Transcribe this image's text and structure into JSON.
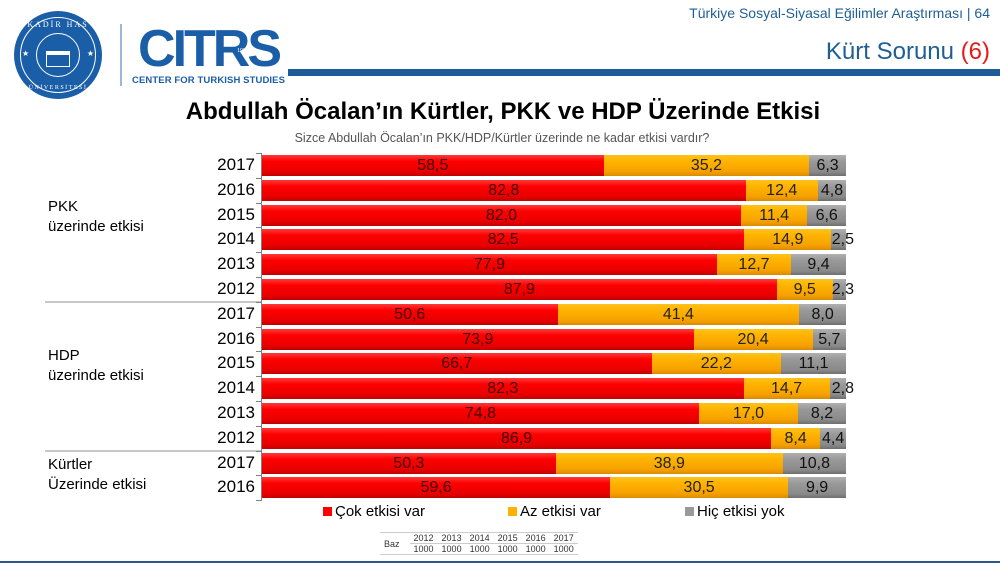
{
  "header": {
    "report_title": "Türkiye Sosyal-Siyasal Eğilimler Araştırması | 64",
    "section_title": "Kürt Sorunu",
    "section_number": "(6)"
  },
  "logos": {
    "university": {
      "top_text": "KADİR HAS",
      "year": "1997",
      "bottom_text": "ÜNİVERSİTESİ"
    },
    "center": {
      "word": "CITRS",
      "subtitle": "CENTER FOR TURKISH STUDIES"
    }
  },
  "colors": {
    "brand_blue": "#1d5c98",
    "red": "#ff0000",
    "orange": "#ffb300",
    "gray": "#999999",
    "accent_red": "#e31b1b"
  },
  "chart_data": {
    "type": "bar",
    "orientation": "horizontal",
    "stacked": true,
    "title": "Abdullah Öcalan’ın Kürtler, PKK ve HDP Üzerinde Etkisi",
    "subtitle": "Sizce Abdullah Öcalan’ın PKK/HDP/Kürtler üzerinde ne kadar etkisi vardır?",
    "xlabel": "",
    "ylabel": "",
    "xlim": [
      0,
      100
    ],
    "unit": "%",
    "legend": [
      "Çok etkisi var",
      "Az etkisi var",
      "Hiç etkisi yok"
    ],
    "legend_position": "bottom",
    "groups": [
      {
        "label_line1": "PKK",
        "label_line2": "üzerinde etkisi",
        "rows": [
          {
            "year": "2017",
            "values": [
              58.5,
              35.2,
              6.3
            ],
            "labels": [
              "58,5",
              "35,2",
              "6,3"
            ]
          },
          {
            "year": "2016",
            "values": [
              82.8,
              12.4,
              4.8
            ],
            "labels": [
              "82,8",
              "12,4",
              "4,8"
            ]
          },
          {
            "year": "2015",
            "values": [
              82.0,
              11.4,
              6.6
            ],
            "labels": [
              "82,0",
              "11,4",
              "6,6"
            ]
          },
          {
            "year": "2014",
            "values": [
              82.5,
              14.9,
              2.5
            ],
            "labels": [
              "82,5",
              "14,9",
              "2,5"
            ]
          },
          {
            "year": "2013",
            "values": [
              77.9,
              12.7,
              9.4
            ],
            "labels": [
              "77,9",
              "12,7",
              "9,4"
            ]
          },
          {
            "year": "2012",
            "values": [
              87.9,
              9.5,
              2.3
            ],
            "labels": [
              "87,9",
              "9,5",
              "2,3"
            ]
          }
        ]
      },
      {
        "label_line1": "HDP",
        "label_line2": "üzerinde etkisi",
        "rows": [
          {
            "year": "2017",
            "values": [
              50.6,
              41.4,
              8.0
            ],
            "labels": [
              "50,6",
              "41,4",
              "8,0"
            ]
          },
          {
            "year": "2016",
            "values": [
              73.9,
              20.4,
              5.7
            ],
            "labels": [
              "73,9",
              "20,4",
              "5,7"
            ]
          },
          {
            "year": "2015",
            "values": [
              66.7,
              22.2,
              11.1
            ],
            "labels": [
              "66,7",
              "22,2",
              "11,1"
            ]
          },
          {
            "year": "2014",
            "values": [
              82.3,
              14.7,
              2.8
            ],
            "labels": [
              "82,3",
              "14,7",
              "2,8"
            ]
          },
          {
            "year": "2013",
            "values": [
              74.8,
              17.0,
              8.2
            ],
            "labels": [
              "74,8",
              "17,0",
              "8,2"
            ]
          },
          {
            "year": "2012",
            "values": [
              86.9,
              8.4,
              4.4
            ],
            "labels": [
              "86,9",
              "8,4",
              "4,4"
            ]
          }
        ]
      },
      {
        "label_line1": "Kürtler",
        "label_line2": "Üzerinde etkisi",
        "rows": [
          {
            "year": "2017",
            "values": [
              50.3,
              38.9,
              10.8
            ],
            "labels": [
              "50,3",
              "38,9",
              "10,8"
            ]
          },
          {
            "year": "2016",
            "values": [
              59.6,
              30.5,
              9.9
            ],
            "labels": [
              "59,6",
              "30,5",
              "9,9"
            ]
          }
        ]
      }
    ]
  },
  "base_table": {
    "label": "Baz",
    "years": [
      "2012",
      "2013",
      "2014",
      "2015",
      "2016",
      "2017"
    ],
    "counts": [
      "1000",
      "1000",
      "1000",
      "1000",
      "1000",
      "1000"
    ]
  }
}
